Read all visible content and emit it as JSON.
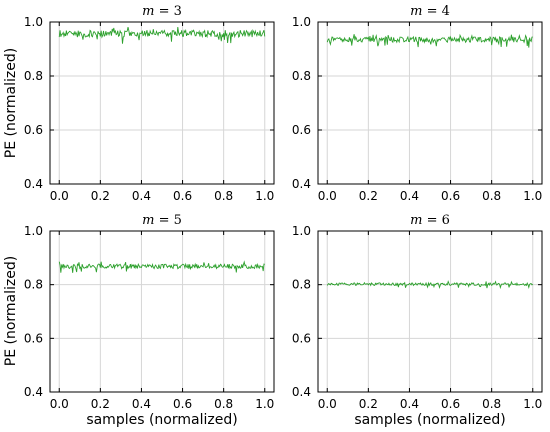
{
  "figure": {
    "ylabel": "PE (normalized)",
    "xlabel": "samples (normalized)"
  },
  "chart_data": [
    {
      "type": "line",
      "title": "m = 3",
      "xlabel": "samples (normalized)",
      "ylabel": "PE (normalized)",
      "xlim": [
        0,
        1
      ],
      "ylim": [
        0.4,
        1.0
      ],
      "xticks": [
        "0.0",
        "0.2",
        "0.4",
        "0.6",
        "0.8",
        "1.0"
      ],
      "yticks": [
        "0.4",
        "0.6",
        "0.8",
        "1.0"
      ],
      "grid": true,
      "series": [
        {
          "mean": 0.957,
          "amplitude": 0.013,
          "min": 0.915,
          "max": 0.985,
          "color": "#2ca02c"
        }
      ]
    },
    {
      "type": "line",
      "title": "m = 4",
      "xlabel": "samples (normalized)",
      "ylabel": "PE (normalized)",
      "xlim": [
        0,
        1
      ],
      "ylim": [
        0.4,
        1.0
      ],
      "xticks": [
        "0.0",
        "0.2",
        "0.4",
        "0.6",
        "0.8",
        "1.0"
      ],
      "yticks": [
        "0.4",
        "0.6",
        "0.8",
        "1.0"
      ],
      "grid": true,
      "series": [
        {
          "mean": 0.935,
          "amplitude": 0.01,
          "min": 0.905,
          "max": 0.955,
          "color": "#2ca02c"
        }
      ]
    },
    {
      "type": "line",
      "title": "m = 5",
      "xlabel": "samples (normalized)",
      "ylabel": "PE (normalized)",
      "xlim": [
        0,
        1
      ],
      "ylim": [
        0.4,
        1.0
      ],
      "xticks": [
        "0.0",
        "0.2",
        "0.4",
        "0.6",
        "0.8",
        "1.0"
      ],
      "yticks": [
        "0.4",
        "0.6",
        "0.8",
        "1.0"
      ],
      "grid": true,
      "series": [
        {
          "mean": 0.868,
          "amplitude": 0.009,
          "min": 0.84,
          "max": 0.89,
          "color": "#2ca02c"
        }
      ]
    },
    {
      "type": "line",
      "title": "m = 6",
      "xlabel": "samples (normalized)",
      "ylabel": "PE (normalized)",
      "xlim": [
        0,
        1
      ],
      "ylim": [
        0.4,
        1.0
      ],
      "xticks": [
        "0.0",
        "0.2",
        "0.4",
        "0.6",
        "0.8",
        "1.0"
      ],
      "yticks": [
        "0.4",
        "0.6",
        "0.8",
        "1.0"
      ],
      "grid": true,
      "series": [
        {
          "mean": 0.802,
          "amplitude": 0.005,
          "min": 0.785,
          "max": 0.815,
          "color": "#2ca02c"
        }
      ]
    }
  ]
}
